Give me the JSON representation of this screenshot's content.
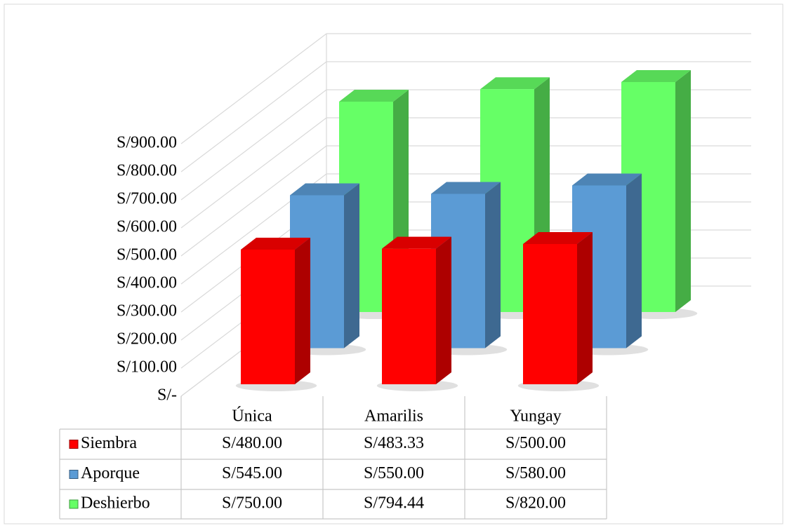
{
  "chart_data": {
    "type": "bar3d",
    "categories": [
      "Única",
      "Amarilis",
      "Yungay"
    ],
    "series": [
      {
        "name": "Siembra",
        "color": "#ff0000",
        "values": [
          480,
          483.33,
          500
        ],
        "value_labels": [
          "S/480.00",
          "S/483.33",
          "S/500.00"
        ]
      },
      {
        "name": "Aporque",
        "color": "#5b9bd5",
        "values": [
          545,
          550,
          580
        ],
        "value_labels": [
          "S/545.00",
          "S/550.00",
          "S/580.00"
        ]
      },
      {
        "name": "Deshierbo",
        "color": "#66ff66",
        "values": [
          750,
          794.44,
          820
        ],
        "value_labels": [
          "S/750.00",
          "S/794.44",
          "S/820.00"
        ]
      }
    ],
    "ylim": [
      0,
      900
    ],
    "yticks": [
      {
        "value": 0,
        "label": "S/-"
      },
      {
        "value": 100,
        "label": "S/100.00"
      },
      {
        "value": 200,
        "label": "S/200.00"
      },
      {
        "value": 300,
        "label": "S/300.00"
      },
      {
        "value": 400,
        "label": "S/400.00"
      },
      {
        "value": 500,
        "label": "S/500.00"
      },
      {
        "value": 600,
        "label": "S/600.00"
      },
      {
        "value": 700,
        "label": "S/700.00"
      },
      {
        "value": 800,
        "label": "S/800.00"
      },
      {
        "value": 900,
        "label": "S/900.00"
      }
    ],
    "grid": true,
    "data_table": true
  }
}
